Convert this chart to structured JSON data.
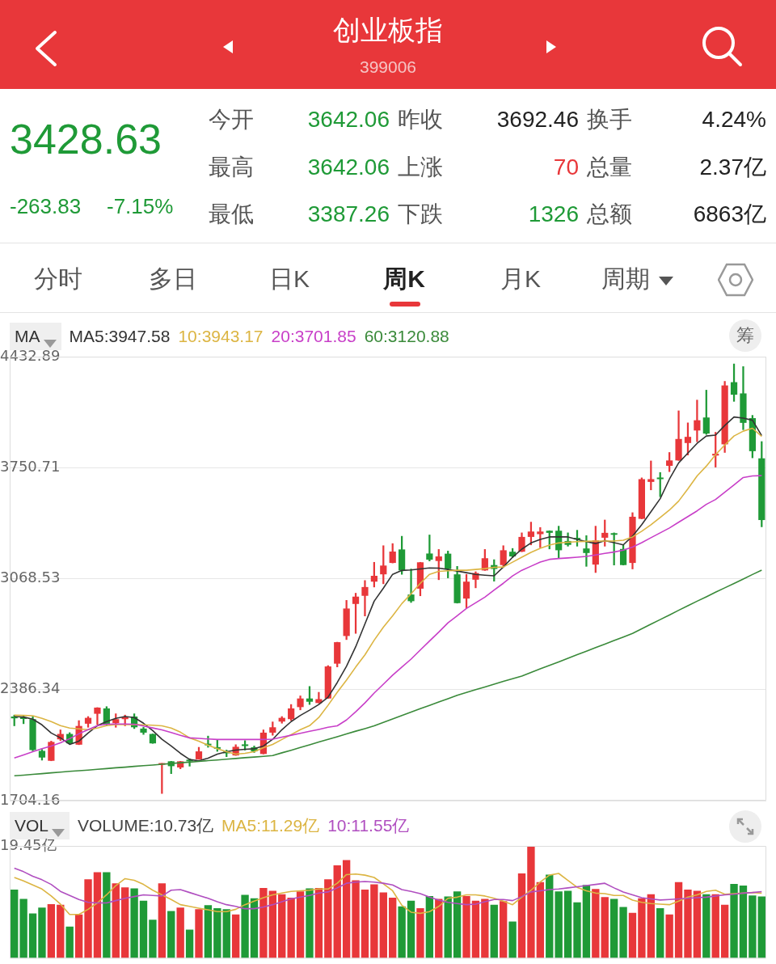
{
  "chart_data": [
    {
      "type": "other",
      "title": "创业板指",
      "subtitle": "399006",
      "annotations": [
        "3428.63",
        "-263.83",
        "-7.15%",
        "今开",
        "3642.06",
        "昨收",
        "3692.46",
        "换手",
        "4.24%",
        "最高",
        "3642.06",
        "上涨",
        "70",
        "总量",
        "2.37亿",
        "最低",
        "3387.26",
        "下跌",
        "1326",
        "总额",
        "6863亿",
        "分时",
        "多日",
        "日K",
        "周K",
        "月K",
        "周期"
      ]
    },
    {
      "type": "candlestick",
      "legend_title": "MA",
      "annotations": [
        "筹"
      ],
      "legend": "top left",
      "grid": "y",
      "tick_labels": "y",
      "ylim": [
        1704.16,
        4432.89
      ],
      "yticks": [
        1704.16,
        2386.34,
        3068.53,
        3750.71,
        4432.89
      ],
      "categories": [
        null,
        null,
        null,
        null,
        null,
        null,
        null,
        null,
        null,
        null,
        null,
        null,
        null,
        null,
        null,
        null,
        null,
        null,
        null,
        null,
        null,
        null,
        null,
        null,
        null,
        null,
        null,
        null,
        null,
        null,
        null,
        null,
        null,
        null,
        null,
        null,
        null,
        null,
        null,
        null,
        null,
        null,
        null,
        null,
        null,
        null,
        null,
        null,
        null,
        null,
        null,
        null,
        null,
        null,
        null,
        null,
        null,
        null,
        null,
        null,
        null,
        null,
        null,
        null,
        null,
        null,
        null,
        null,
        null,
        null,
        null,
        null,
        null,
        null,
        null,
        null,
        null,
        null,
        null,
        null,
        null,
        null
      ],
      "ohlc": [
        [
          2221,
          2230,
          2164,
          2210
        ],
        [
          2213,
          2226,
          2177,
          2206
        ],
        [
          2205,
          2221,
          2010,
          2015
        ],
        [
          2010,
          2019,
          1953,
          1969
        ],
        [
          1949,
          2070,
          1949,
          2065
        ],
        [
          2081,
          2139,
          2073,
          2114
        ],
        [
          2114,
          2122,
          2052,
          2056
        ],
        [
          2048,
          2196,
          2048,
          2163
        ],
        [
          2177,
          2221,
          2155,
          2213
        ],
        [
          2238,
          2276,
          2172,
          2276
        ],
        [
          2271,
          2282,
          2164,
          2172
        ],
        [
          2180,
          2238,
          2155,
          2205
        ],
        [
          2205,
          2230,
          2164,
          2221
        ],
        [
          2221,
          2238,
          2147,
          2155
        ],
        [
          2147,
          2155,
          2111,
          2122
        ],
        [
          2114,
          2114,
          2056,
          2056
        ],
        [
          1925,
          1933,
          1748,
          1933
        ],
        [
          1946,
          1946,
          1870,
          1916
        ],
        [
          1908,
          1946,
          1900,
          1946
        ],
        [
          1954,
          1962,
          1916,
          1946
        ],
        [
          1958,
          2032,
          1958,
          2007
        ],
        [
          2048,
          2101,
          2032,
          2044
        ],
        [
          2027,
          2078,
          2007,
          2023
        ],
        [
          2000,
          2015,
          1974,
          1995
        ],
        [
          1982,
          2048,
          1982,
          2035
        ],
        [
          2048,
          2073,
          2015,
          2040
        ],
        [
          2032,
          2040,
          2000,
          2007
        ],
        [
          1991,
          2139,
          1991,
          2122
        ],
        [
          2122,
          2188,
          2106,
          2155
        ],
        [
          2190,
          2221,
          2180,
          2213
        ],
        [
          2205,
          2295,
          2197,
          2271
        ],
        [
          2279,
          2348,
          2262,
          2332
        ],
        [
          2332,
          2406,
          2295,
          2312
        ],
        [
          2304,
          2370,
          2304,
          2328
        ],
        [
          2332,
          2534,
          2332,
          2529
        ],
        [
          2546,
          2678,
          2526,
          2678
        ],
        [
          2716,
          2935,
          2694,
          2885
        ],
        [
          2913,
          2979,
          2732,
          2958
        ],
        [
          2963,
          3057,
          2839,
          3017
        ],
        [
          3050,
          3169,
          3017,
          3086
        ],
        [
          3095,
          3271,
          3037,
          3149
        ],
        [
          3165,
          3284,
          3165,
          3235
        ],
        [
          3248,
          3329,
          3095,
          3119
        ],
        [
          2971,
          3128,
          2922,
          2930
        ],
        [
          3007,
          3169,
          2963,
          3169
        ],
        [
          3223,
          3337,
          3177,
          3185
        ],
        [
          3177,
          3248,
          3062,
          3205
        ],
        [
          3222,
          3238,
          3073,
          3128
        ],
        [
          3095,
          3144,
          2918,
          2918
        ],
        [
          2946,
          3095,
          2889,
          3050
        ],
        [
          3062,
          3111,
          3012,
          3103
        ],
        [
          3119,
          3248,
          3119,
          3194
        ],
        [
          3152,
          3185,
          3053,
          3128
        ],
        [
          3152,
          3271,
          3140,
          3243
        ],
        [
          3234,
          3254,
          3200,
          3205
        ],
        [
          3234,
          3350,
          3234,
          3325
        ],
        [
          3325,
          3416,
          3276,
          3358
        ],
        [
          3342,
          3383,
          3259,
          3358
        ],
        [
          3363,
          3363,
          3251,
          3350
        ],
        [
          3363,
          3391,
          3193,
          3243
        ],
        [
          3300,
          3350,
          3268,
          3276
        ],
        [
          3317,
          3366,
          3268,
          3309
        ],
        [
          3254,
          3333,
          3144,
          3226
        ],
        [
          3155,
          3391,
          3106,
          3304
        ],
        [
          3320,
          3429,
          3268,
          3350
        ],
        [
          3342,
          3350,
          3152,
          3338
        ],
        [
          3251,
          3276,
          3152,
          3152
        ],
        [
          3165,
          3474,
          3128,
          3449
        ],
        [
          3436,
          3688,
          3436,
          3680
        ],
        [
          3663,
          3792,
          3614,
          3680
        ],
        [
          3688,
          3721,
          3572,
          3680
        ],
        [
          3762,
          3844,
          3726,
          3795
        ],
        [
          3795,
          4100,
          3795,
          3927
        ],
        [
          3902,
          4026,
          3828,
          3940
        ],
        [
          3979,
          4166,
          3910,
          4042
        ],
        [
          4059,
          4227,
          3955,
          3960
        ],
        [
          3825,
          3968,
          3754,
          3836
        ],
        [
          3894,
          4281,
          3844,
          4256
        ],
        [
          4276,
          4388,
          4158,
          4199
        ],
        [
          4207,
          4372,
          3984,
          4026
        ],
        [
          4055,
          4072,
          3811,
          3852
        ],
        [
          3808,
          3911,
          3387,
          3428.63
        ]
      ],
      "colors": [
        "#1f9a37",
        "#1f9a37",
        "#1f9a37",
        "#1f9a37",
        "#e8373a",
        "#e8373a",
        "#1f9a37",
        "#e8373a",
        "#e8373a",
        "#e8373a",
        "#1f9a37",
        "#e8373a",
        "#e8373a",
        "#1f9a37",
        "#1f9a37",
        "#1f9a37",
        "#e8373a",
        "#1f9a37",
        "#e8373a",
        "#1f9a37",
        "#e8373a",
        "#1f9a37",
        "#1f9a37",
        "#1f9a37",
        "#e8373a",
        "#1f9a37",
        "#1f9a37",
        "#e8373a",
        "#e8373a",
        "#e8373a",
        "#e8373a",
        "#e8373a",
        "#1f9a37",
        "#e8373a",
        "#e8373a",
        "#e8373a",
        "#e8373a",
        "#e8373a",
        "#e8373a",
        "#e8373a",
        "#e8373a",
        "#e8373a",
        "#1f9a37",
        "#1f9a37",
        "#e8373a",
        "#1f9a37",
        "#e8373a",
        "#1f9a37",
        "#1f9a37",
        "#e8373a",
        "#e8373a",
        "#e8373a",
        "#1f9a37",
        "#e8373a",
        "#1f9a37",
        "#e8373a",
        "#e8373a",
        "#e8373a",
        "#1f9a37",
        "#1f9a37",
        "#1f9a37",
        "#1f9a37",
        "#1f9a37",
        "#e8373a",
        "#e8373a",
        "#1f9a37",
        "#1f9a37",
        "#e8373a",
        "#e8373a",
        "#e8373a",
        "#1f9a37",
        "#e8373a",
        "#e8373a",
        "#e8373a",
        "#e8373a",
        "#1f9a37",
        "#e8373a",
        "#e8373a",
        "#1f9a37",
        "#1f9a37",
        "#1f9a37",
        "#1f9a37"
      ],
      "series": [
        {
          "type": "line",
          "name": "MA5:3947.58",
          "color": "#333333",
          "values": [
            2221,
            2218,
            2205,
            2170,
            2120,
            2090,
            2050,
            2070,
            2120,
            2165,
            2190,
            2210,
            2221,
            2215,
            2180,
            2135,
            2081,
            2040,
            1995,
            1957,
            1949,
            1965,
            1990,
            2005,
            2015,
            2020,
            2023,
            2040,
            2081,
            2140,
            2190,
            2228,
            2260,
            2295,
            2340,
            2430,
            2530,
            2650,
            2790,
            2930,
            3010,
            3095,
            3119,
            3122,
            3128,
            3134,
            3133,
            3125,
            3115,
            3105,
            3095,
            3090,
            3086,
            3140,
            3200,
            3250,
            3288,
            3310,
            3325,
            3325,
            3325,
            3310,
            3296,
            3284,
            3302,
            3290,
            3276,
            3330,
            3400,
            3480,
            3560,
            3680,
            3780,
            3840,
            3900,
            3945,
            3951,
            4010,
            4062,
            4055,
            4042,
            3947.58
          ]
        },
        {
          "type": "line",
          "name": "10:3943.17",
          "color": "#dcb543",
          "values": [
            2229,
            2228,
            2226,
            2210,
            2190,
            2165,
            2150,
            2145,
            2140,
            2150,
            2165,
            2172,
            2172,
            2172,
            2170,
            2168,
            2164,
            2150,
            2125,
            2090,
            2070,
            2045,
            2023,
            2005,
            1990,
            1995,
            2005,
            2030,
            2050,
            2080,
            2110,
            2140,
            2165,
            2215,
            2290,
            2370,
            2445,
            2525,
            2600,
            2690,
            2770,
            2840,
            2915,
            2975,
            3040,
            3095,
            3113,
            3117,
            3120,
            3120,
            3125,
            3130,
            3138,
            3140,
            3170,
            3200,
            3230,
            3255,
            3275,
            3288,
            3292,
            3296,
            3298,
            3300,
            3300,
            3300,
            3305,
            3325,
            3360,
            3400,
            3445,
            3490,
            3545,
            3620,
            3700,
            3760,
            3830,
            3890,
            3945,
            3975,
            3993,
            3943.17
          ]
        },
        {
          "type": "line",
          "name": "20:3701.85",
          "color": "#c83fc8",
          "values": [
            1966,
            1985,
            2005,
            2024,
            2040,
            2060,
            2085,
            2115,
            2140,
            2165,
            2174,
            2175,
            2175,
            2174,
            2163,
            2151,
            2139,
            2123,
            2106,
            2090,
            2087,
            2083,
            2080,
            2080,
            2080,
            2080,
            2080,
            2080,
            2082,
            2094,
            2106,
            2118,
            2130,
            2142,
            2155,
            2164,
            2200,
            2250,
            2305,
            2365,
            2420,
            2475,
            2525,
            2574,
            2630,
            2685,
            2740,
            2797,
            2840,
            2885,
            2920,
            2955,
            2998,
            3040,
            3085,
            3120,
            3145,
            3170,
            3187,
            3192,
            3196,
            3200,
            3205,
            3214,
            3224,
            3232,
            3244,
            3262,
            3290,
            3320,
            3350,
            3380,
            3415,
            3450,
            3485,
            3525,
            3555,
            3600,
            3645,
            3690,
            3700,
            3701.85
          ]
        },
        {
          "type": "line",
          "name": "60:3120.88",
          "color": "#3a8a3a",
          "values": [
            1857,
            1861,
            1866,
            1870,
            1875,
            1879,
            1884,
            1888,
            1892,
            1897,
            1901,
            1906,
            1910,
            1915,
            1919,
            1923,
            1928,
            1932,
            1937,
            1941,
            1945,
            1950,
            1954,
            1959,
            1963,
            1968,
            1972,
            1976,
            1981,
            1998,
            2014,
            2031,
            2047,
            2064,
            2081,
            2097,
            2114,
            2131,
            2147,
            2164,
            2185,
            2206,
            2227,
            2248,
            2269,
            2289,
            2310,
            2331,
            2352,
            2369,
            2386,
            2403,
            2420,
            2437,
            2453,
            2470,
            2492,
            2514,
            2535,
            2557,
            2579,
            2601,
            2623,
            2645,
            2666,
            2688,
            2710,
            2732,
            2760,
            2789,
            2817,
            2845,
            2874,
            2902,
            2930,
            2957,
            2985,
            3012,
            3039,
            3066,
            3094,
            3120.88
          ]
        }
      ]
    },
    {
      "type": "bar",
      "legend_title": "VOL",
      "legend": "top left",
      "tick_labels": "y",
      "ylim": [
        0,
        19.45
      ],
      "yticks": [
        {
          "value": 19.45,
          "label": "19.45亿"
        }
      ],
      "categories": [
        null,
        null,
        null,
        null,
        null,
        null,
        null,
        null,
        null,
        null,
        null,
        null,
        null,
        null,
        null,
        null,
        null,
        null,
        null,
        null,
        null,
        null,
        null,
        null,
        null,
        null,
        null,
        null,
        null,
        null,
        null,
        null,
        null,
        null,
        null,
        null,
        null,
        null,
        null,
        null,
        null,
        null,
        null,
        null,
        null,
        null,
        null,
        null,
        null,
        null,
        null,
        null,
        null,
        null,
        null,
        null,
        null,
        null,
        null,
        null,
        null,
        null,
        null,
        null,
        null,
        null,
        null,
        null,
        null,
        null,
        null,
        null,
        null,
        null,
        null,
        null,
        null,
        null,
        null,
        null,
        null,
        null
      ],
      "series": [
        {
          "name": "VOLUME:10.73亿",
          "values": [
            11.9,
            10.3,
            7.8,
            8.8,
            9.4,
            9.3,
            5.5,
            7.6,
            13.7,
            14.9,
            14.9,
            13.0,
            12.3,
            12.1,
            10.0,
            6.7,
            13.0,
            8.2,
            8.8,
            5.0,
            8.5,
            9.2,
            8.7,
            8.5,
            7.6,
            11.0,
            10.4,
            12.2,
            11.7,
            11.1,
            10.5,
            11.6,
            12.1,
            12.2,
            13.7,
            16.1,
            17.0,
            13.5,
            11.9,
            12.8,
            11.4,
            10.5,
            9.0,
            10.0,
            8.7,
            10.8,
            10.3,
            10.7,
            11.6,
            10.8,
            10.0,
            10.3,
            9.3,
            9.9,
            6.4,
            14.7,
            19.45,
            13.2,
            14.5,
            11.6,
            11.7,
            9.7,
            12.7,
            12.0,
            10.6,
            10.3,
            8.9,
            7.9,
            10.4,
            11.1,
            8.7,
            7.6,
            13.2,
            11.9,
            11.7,
            11.1,
            11.1,
            9.3,
            12.9,
            12.6,
            10.9,
            10.73
          ],
          "colors": [
            "#1f9a37",
            "#1f9a37",
            "#1f9a37",
            "#1f9a37",
            "#e8373a",
            "#e8373a",
            "#1f9a37",
            "#e8373a",
            "#e8373a",
            "#e8373a",
            "#1f9a37",
            "#e8373a",
            "#e8373a",
            "#1f9a37",
            "#1f9a37",
            "#1f9a37",
            "#e8373a",
            "#1f9a37",
            "#e8373a",
            "#1f9a37",
            "#e8373a",
            "#1f9a37",
            "#1f9a37",
            "#1f9a37",
            "#e8373a",
            "#1f9a37",
            "#1f9a37",
            "#e8373a",
            "#e8373a",
            "#e8373a",
            "#e8373a",
            "#e8373a",
            "#1f9a37",
            "#e8373a",
            "#e8373a",
            "#e8373a",
            "#e8373a",
            "#e8373a",
            "#e8373a",
            "#e8373a",
            "#e8373a",
            "#e8373a",
            "#1f9a37",
            "#1f9a37",
            "#e8373a",
            "#1f9a37",
            "#e8373a",
            "#1f9a37",
            "#1f9a37",
            "#e8373a",
            "#e8373a",
            "#e8373a",
            "#1f9a37",
            "#e8373a",
            "#1f9a37",
            "#e8373a",
            "#e8373a",
            "#e8373a",
            "#1f9a37",
            "#1f9a37",
            "#1f9a37",
            "#1f9a37",
            "#1f9a37",
            "#e8373a",
            "#e8373a",
            "#1f9a37",
            "#1f9a37",
            "#e8373a",
            "#e8373a",
            "#e8373a",
            "#1f9a37",
            "#e8373a",
            "#e8373a",
            "#e8373a",
            "#e8373a",
            "#1f9a37",
            "#e8373a",
            "#e8373a",
            "#1f9a37",
            "#1f9a37",
            "#1f9a37",
            "#1f9a37"
          ]
        },
        {
          "type": "line",
          "name": "MA5:11.29亿",
          "color": "#dcb543",
          "values": [
            14.0,
            13.4,
            12.7,
            12.0,
            10.8,
            9.4,
            7.6,
            7.6,
            8.5,
            9.6,
            11.0,
            12.6,
            13.8,
            13.5,
            12.8,
            11.8,
            11.0,
            10.2,
            9.3,
            9.0,
            8.7,
            8.4,
            8.1,
            8.1,
            8.5,
            9.3,
            9.9,
            10.5,
            11.0,
            11.3,
            11.6,
            11.7,
            11.8,
            12.0,
            12.0,
            13.0,
            14.5,
            14.6,
            14.4,
            14.0,
            12.9,
            11.7,
            9.2,
            8.0,
            7.8,
            8.1,
            9.0,
            10.4,
            10.6,
            11.0,
            11.0,
            10.8,
            10.4,
            9.9,
            9.3,
            10.6,
            11.8,
            13.2,
            14.4,
            14.7,
            13.5,
            12.3,
            11.7,
            11.3,
            11.2,
            10.9,
            10.9,
            10.1,
            9.7,
            9.5,
            9.4,
            9.3,
            9.9,
            10.6,
            11.0,
            11.6,
            11.8,
            11.1,
            11.2,
            11.3,
            11.4,
            11.29
          ]
        },
        {
          "type": "line",
          "name": "10:11.55亿",
          "color": "#b04fc0",
          "values": [
            15.6,
            15.0,
            14.2,
            13.6,
            12.8,
            11.6,
            10.9,
            10.2,
            9.7,
            9.6,
            9.6,
            10.0,
            10.4,
            10.7,
            11.0,
            10.9,
            10.8,
            11.8,
            11.9,
            11.4,
            10.9,
            10.4,
            9.8,
            9.3,
            9.0,
            8.6,
            8.6,
            8.9,
            9.3,
            9.8,
            10.3,
            10.6,
            10.9,
            11.3,
            11.5,
            12.2,
            13.0,
            13.2,
            13.3,
            13.2,
            13.0,
            12.7,
            11.9,
            11.6,
            11.2,
            10.6,
            10.1,
            9.7,
            9.5,
            9.3,
            9.4,
            9.8,
            10.2,
            10.2,
            10.0,
            10.7,
            11.5,
            11.7,
            11.9,
            12.0,
            12.2,
            12.4,
            12.6,
            12.8,
            13.0,
            12.2,
            11.5,
            11.0,
            10.5,
            10.3,
            10.1,
            10.2,
            10.3,
            10.4,
            10.5,
            10.6,
            10.8,
            11.0,
            11.1,
            11.3,
            11.4,
            11.55
          ]
        }
      ]
    }
  ]
}
